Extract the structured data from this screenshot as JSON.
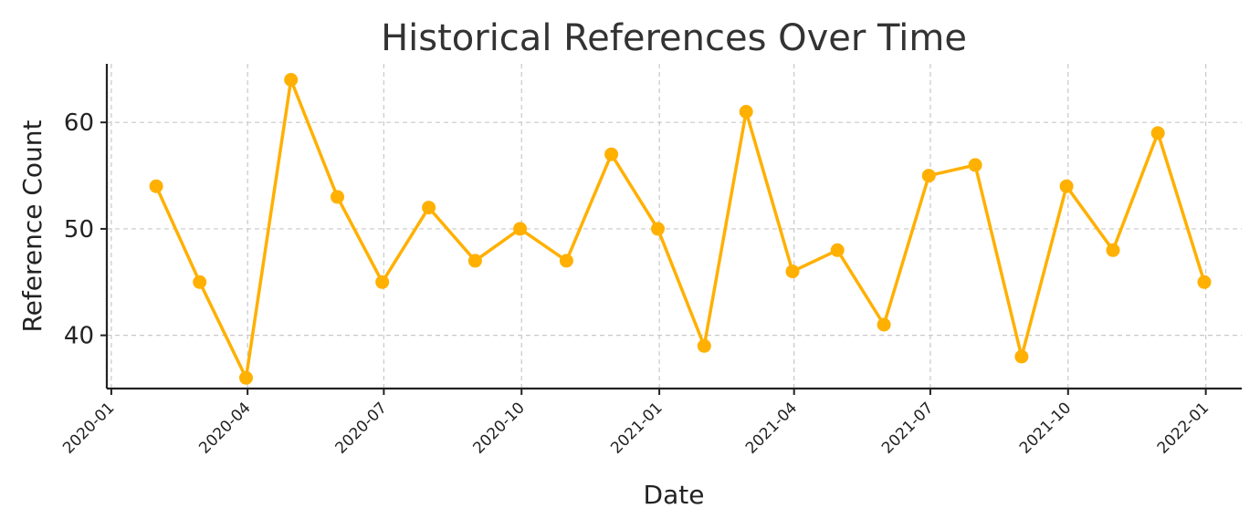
{
  "chart_data": {
    "type": "line",
    "title": "Historical References Over Time",
    "xlabel": "Date",
    "ylabel": "Reference Count",
    "x_ticks": [
      "2020-01",
      "2020-04",
      "2020-07",
      "2020-10",
      "2021-01",
      "2021-04",
      "2021-07",
      "2021-10",
      "2022-01"
    ],
    "y_ticks": [
      40,
      50,
      60
    ],
    "ylim": [
      35,
      65.5
    ],
    "xlim": [
      "2019-12-29",
      "2022-01-25"
    ],
    "grid": true,
    "color": "#FFB000",
    "series": [
      {
        "x": [
          "2020-01-31",
          "2020-02-29",
          "2020-03-31",
          "2020-04-30",
          "2020-05-31",
          "2020-06-30",
          "2020-07-31",
          "2020-08-31",
          "2020-09-30",
          "2020-10-31",
          "2020-11-30",
          "2020-12-31",
          "2021-01-31",
          "2021-02-28",
          "2021-03-31",
          "2021-04-30",
          "2021-05-31",
          "2021-06-30",
          "2021-07-31",
          "2021-08-31",
          "2021-09-30",
          "2021-10-31",
          "2021-11-30",
          "2021-12-31"
        ],
        "values": [
          54,
          45,
          36,
          64,
          53,
          45,
          52,
          47,
          50,
          47,
          57,
          50,
          39,
          61,
          46,
          48,
          41,
          55,
          56,
          38,
          54,
          48,
          59,
          45
        ]
      }
    ]
  }
}
